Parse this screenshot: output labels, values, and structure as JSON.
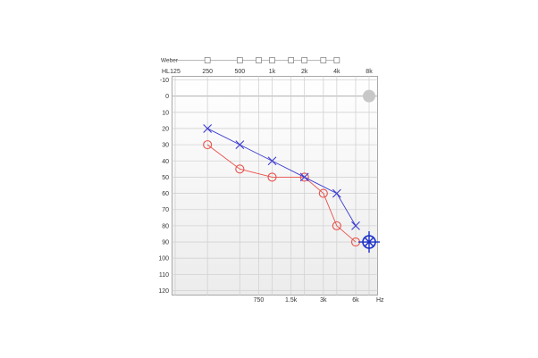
{
  "chart_data": {
    "type": "line",
    "chart_kind": "audiogram",
    "x_scale": "log",
    "y_inverted": true,
    "xlim": [
      125,
      8000
    ],
    "ylim": [
      -10,
      120
    ],
    "y_ticks": [
      -10,
      0,
      10,
      20,
      30,
      40,
      50,
      60,
      70,
      80,
      90,
      100,
      110,
      120
    ],
    "y_tick_labels": [
      "-10",
      "0",
      "10",
      "20",
      "30",
      "40",
      "50",
      "60",
      "70",
      "80",
      "90",
      "100",
      "110",
      "120"
    ],
    "hl_label": "HL",
    "top_ticks": [
      {
        "freq": 125,
        "label": "125"
      },
      {
        "freq": 250,
        "label": "250"
      },
      {
        "freq": 500,
        "label": "500"
      },
      {
        "freq": 1000,
        "label": "1k"
      },
      {
        "freq": 2000,
        "label": "2k"
      },
      {
        "freq": 4000,
        "label": "4k"
      },
      {
        "freq": 8000,
        "label": "8k"
      }
    ],
    "bottom_ticks": [
      {
        "freq": 750,
        "label": "750"
      },
      {
        "freq": 1500,
        "label": "1.5k"
      },
      {
        "freq": 3000,
        "label": "3k"
      },
      {
        "freq": 6000,
        "label": "6k"
      }
    ],
    "hz_label": "Hz",
    "weber_label": "Weber",
    "weber_freqs": [
      250,
      500,
      750,
      1000,
      1500,
      2000,
      3000,
      4000
    ],
    "grid": true,
    "series": [
      {
        "symbol": "circle",
        "color": "#e8504a",
        "x": [
          250,
          500,
          1000,
          2000,
          3000,
          4000,
          6000
        ],
        "y": [
          30,
          45,
          50,
          50,
          60,
          80,
          90
        ]
      },
      {
        "symbol": "cross",
        "color": "#3a3ad0",
        "x": [
          250,
          500,
          1000,
          2000,
          4000,
          6000
        ],
        "y": [
          20,
          30,
          40,
          50,
          60,
          80
        ]
      }
    ],
    "cursor": {
      "freq": 8000,
      "hl": 90,
      "color": "#1a2fc8"
    },
    "gray_marker": {
      "freq": 8000,
      "hl": 0,
      "color": "#c8c8c8"
    }
  }
}
